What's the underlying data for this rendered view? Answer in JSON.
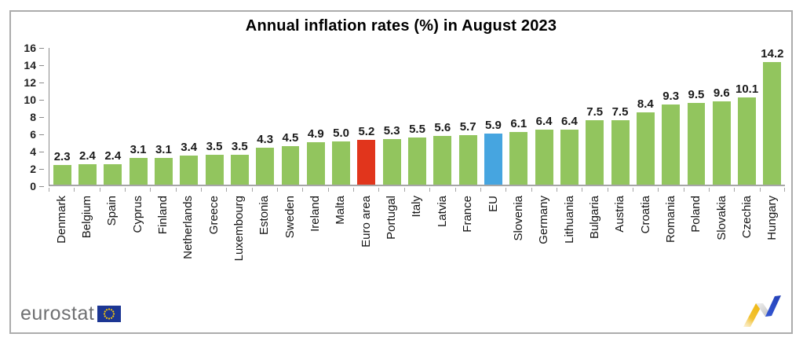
{
  "title": "Annual inflation rates (%) in August 2023",
  "chart_data": {
    "type": "bar",
    "categories": [
      "Denmark",
      "Belgium",
      "Spain",
      "Cyprus",
      "Finland",
      "Netherlands",
      "Greece",
      "Luxembourg",
      "Estonia",
      "Sweden",
      "Ireland",
      "Malta",
      "Euro area",
      "Portugal",
      "Italy",
      "Latvia",
      "France",
      "EU",
      "Slovenia",
      "Germany",
      "Lithuania",
      "Bulgaria",
      "Austria",
      "Croatia",
      "Romania",
      "Poland",
      "Slovakia",
      "Czechia",
      "Hungary"
    ],
    "values": [
      2.3,
      2.4,
      2.4,
      3.1,
      3.1,
      3.4,
      3.5,
      3.5,
      4.3,
      4.5,
      4.9,
      5.0,
      5.2,
      5.3,
      5.5,
      5.6,
      5.7,
      5.9,
      6.1,
      6.4,
      6.4,
      7.5,
      7.5,
      8.4,
      9.3,
      9.5,
      9.6,
      10.1,
      14.2
    ],
    "title": "Annual inflation rates (%) in August 2023",
    "xlabel": "",
    "ylabel": "",
    "ylim": [
      0,
      16
    ],
    "yticks": [
      0,
      2,
      4,
      6,
      8,
      10,
      12,
      14,
      16
    ],
    "grid": false,
    "legend": false,
    "value_labels": true,
    "highlight_bars": {
      "Euro area": "#E1351C",
      "EU": "#46A5E0"
    },
    "default_bar_color": "#92C55E"
  },
  "footer": {
    "brand": "eurostat"
  },
  "colors": {
    "bar_green": "#92C55E",
    "bar_red": "#E1351C",
    "bar_blue": "#46A5E0",
    "axis_gray": "#A6A6A6",
    "frame_border": "#ACACAC",
    "eu_flag_blue": "#1C3693",
    "eu_star_yellow": "#FFCC00",
    "brand_gray": "#6F7072",
    "icon_yellow": "#F2C233",
    "icon_gray": "#C9C9C9",
    "icon_blue": "#2B4BC4"
  }
}
